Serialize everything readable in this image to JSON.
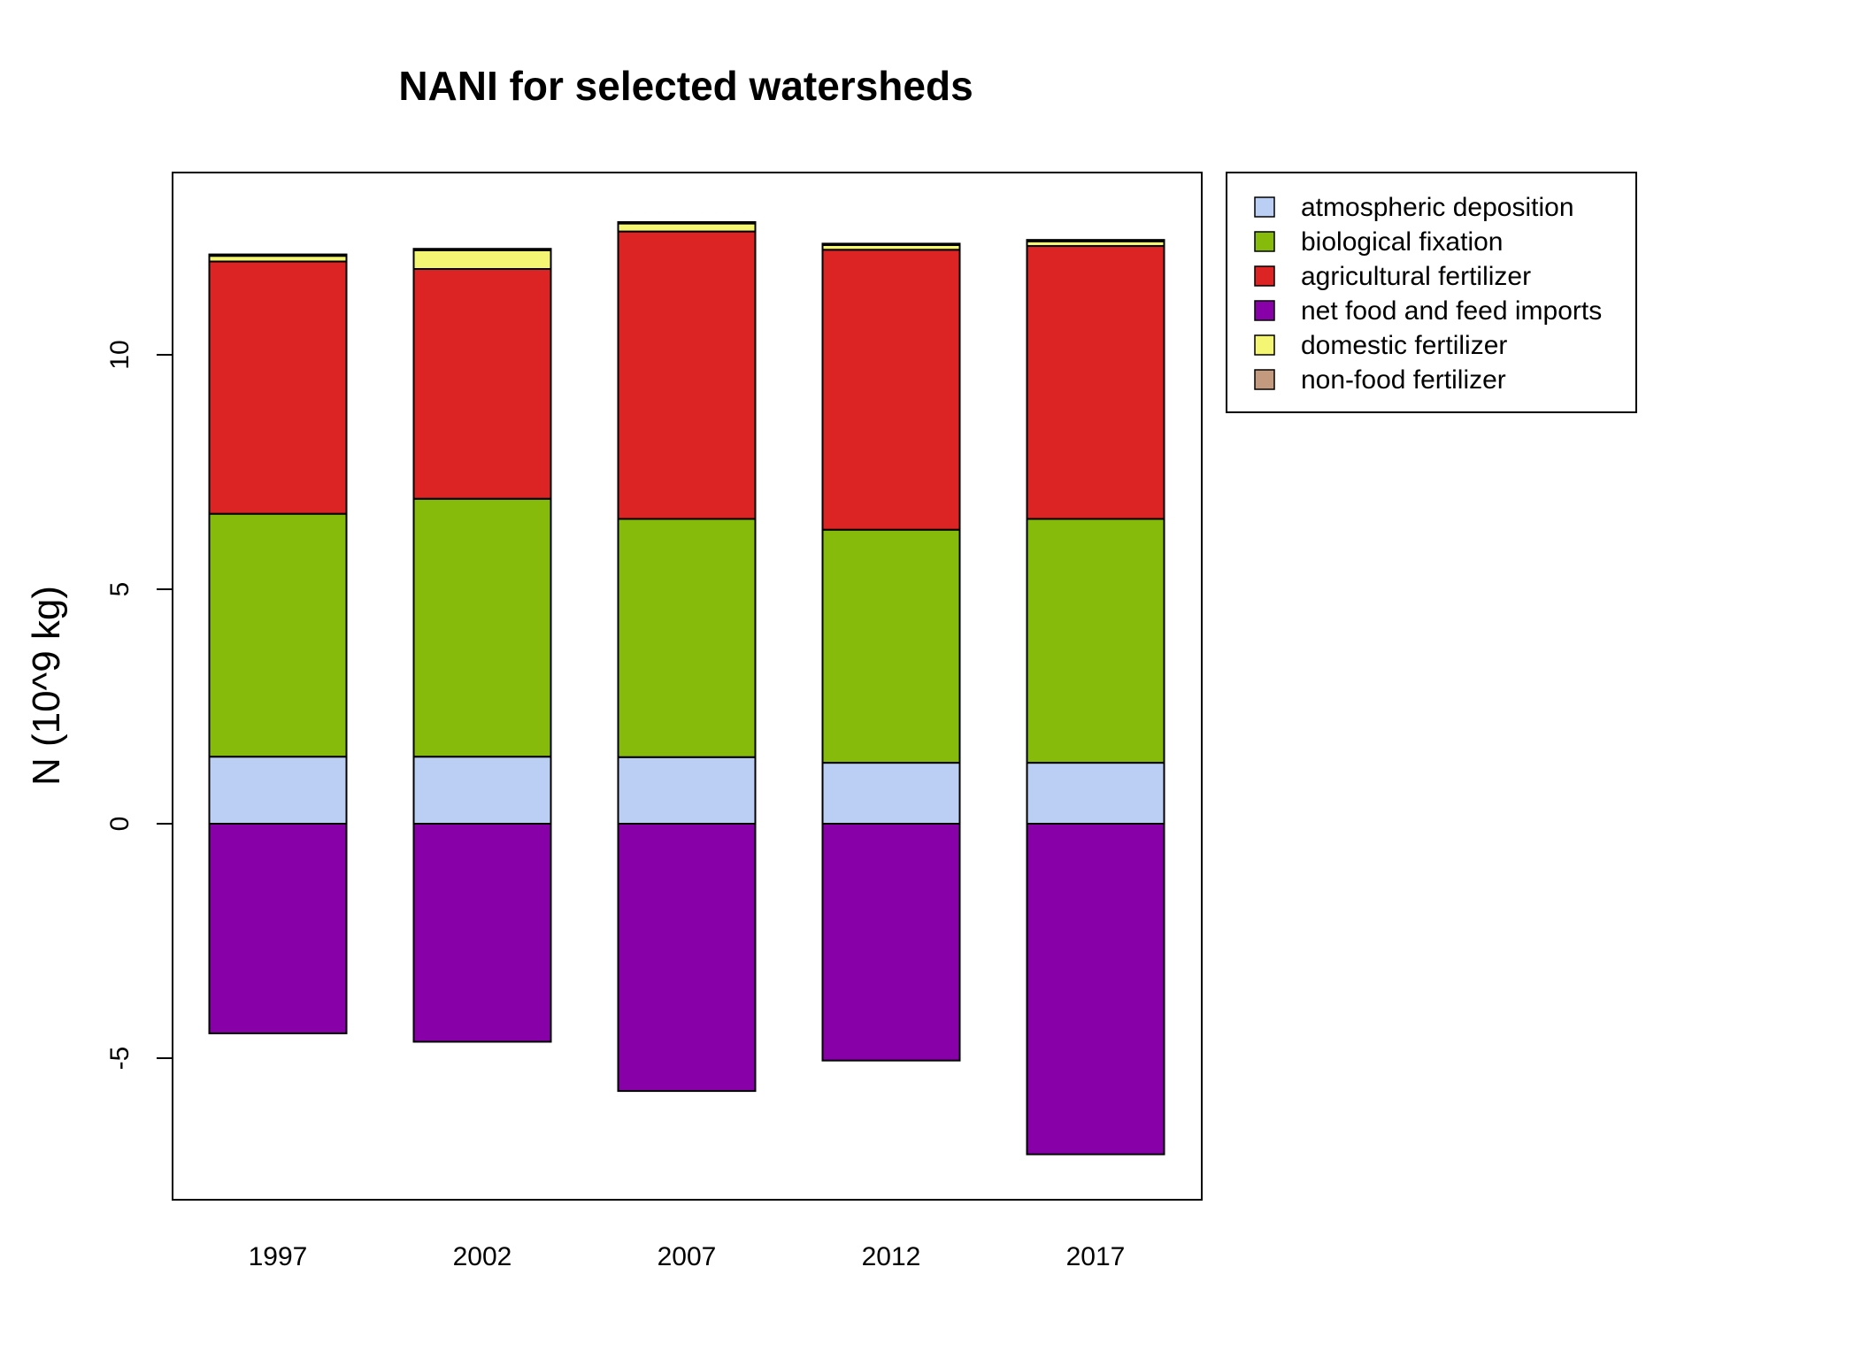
{
  "chart_data": {
    "type": "bar",
    "stacked": true,
    "title": "NANI for selected watersheds",
    "xlabel": "",
    "ylabel": "N (10^9 kg)",
    "categories": [
      "1997",
      "2002",
      "2007",
      "2012",
      "2017"
    ],
    "ylim": [
      -8,
      14
    ],
    "yticks": [
      -5,
      0,
      5,
      10
    ],
    "grid": false,
    "legend_position": "right",
    "series": [
      {
        "name": "atmospheric deposition",
        "color": "#bbcff5",
        "values": [
          1.43,
          1.43,
          1.42,
          1.3,
          1.3
        ]
      },
      {
        "name": "biological fixation",
        "color": "#86bb0c",
        "values": [
          5.18,
          5.5,
          5.08,
          4.97,
          5.2
        ]
      },
      {
        "name": "agricultural fertilizer",
        "color": "#dc2424",
        "values": [
          5.38,
          4.9,
          6.13,
          5.97,
          5.82
        ]
      },
      {
        "name": "net food and feed imports",
        "color": "#8800a8",
        "values": [
          -4.47,
          -4.65,
          -5.7,
          -5.05,
          -7.05
        ]
      },
      {
        "name": "domestic fertilizer",
        "color": "#f5f574",
        "values": [
          0.12,
          0.4,
          0.17,
          0.1,
          0.1
        ]
      },
      {
        "name": "non-food fertilizer",
        "color": "#c49a7e",
        "values": [
          0.03,
          0.03,
          0.03,
          0.03,
          0.03
        ]
      }
    ]
  }
}
